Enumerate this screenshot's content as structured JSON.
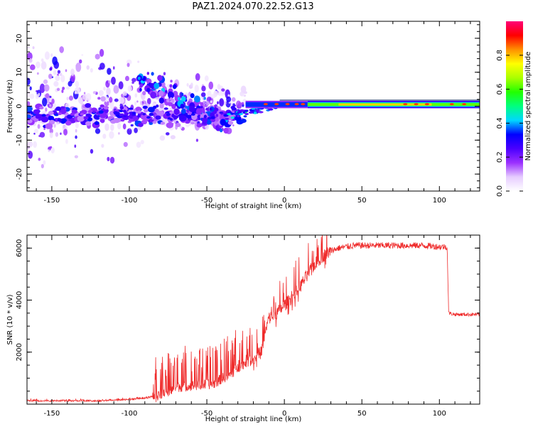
{
  "figure_title": "PAZ1.2024.070.22.52.G13",
  "colors": {
    "snr_line": "#ef2b2b",
    "axis": "#000000",
    "colormap": [
      "#ffffff",
      "#e6ccff",
      "#9b30ff",
      "#4a00ff",
      "#0000ff",
      "#00d7ff",
      "#00ff7f",
      "#22ff00",
      "#aaff00",
      "#ffff00",
      "#ff9000",
      "#ff0000",
      "#ff0077"
    ]
  },
  "chart_data": [
    {
      "type": "heatmap",
      "title": "PAZ1.2024.070.22.52.G13",
      "xlabel": "Height of straight line (km)",
      "ylabel": "Frequency (Hz)",
      "xlim": [
        -166,
        126
      ],
      "ylim": [
        -25,
        25
      ],
      "xticks": [
        -150,
        -100,
        -50,
        0,
        50,
        100
      ],
      "yticks": [
        -20,
        -10,
        0,
        10,
        20
      ],
      "colorbar": {
        "label": "Normalized spectral amplitude",
        "range": [
          0,
          1
        ],
        "ticks": [
          0.0,
          0.2,
          0.4,
          0.6,
          0.8
        ]
      },
      "features": [
        {
          "description": "scattered weak noise blobs",
          "x_range": [
            -166,
            -25
          ],
          "freq_range": [
            -25,
            25
          ]
        },
        {
          "description": "spreading band near 0 Hz",
          "x_range": [
            -110,
            -25
          ],
          "freq_range": [
            -8,
            8
          ]
        },
        {
          "description": "concentrated carrier line",
          "x_range": [
            -25,
            126
          ],
          "freq_hz": 0.5
        }
      ]
    },
    {
      "type": "line",
      "xlabel": "Height of straight line (km)",
      "ylabel": "SNR (10 * v/v)",
      "xlim": [
        -166,
        126
      ],
      "ylim": [
        0,
        6500
      ],
      "xticks": [
        -150,
        -100,
        -50,
        0,
        50,
        100
      ],
      "yticks": [
        2000,
        4000,
        6000
      ],
      "series": [
        {
          "x": [
            -166,
            -150,
            -120,
            -100,
            -90,
            -80,
            -75,
            -70,
            -60,
            -50,
            -45,
            -40,
            -35,
            -30,
            -25,
            -20,
            -15,
            -10,
            -5,
            0,
            5,
            10,
            15,
            20,
            25,
            30,
            35,
            40,
            45,
            50,
            60,
            70,
            80,
            90,
            100,
            105,
            106,
            110,
            120,
            126
          ],
          "values": [
            100,
            100,
            100,
            150,
            200,
            300,
            450,
            650,
            700,
            750,
            800,
            1000,
            1100,
            1400,
            1600,
            1700,
            2000,
            3300,
            3500,
            3800,
            4100,
            4500,
            5000,
            5400,
            5700,
            5900,
            6000,
            6050,
            6100,
            6100,
            6100,
            6100,
            6100,
            6100,
            6050,
            6050,
            3500,
            3450,
            3450,
            3450
          ]
        }
      ]
    }
  ]
}
